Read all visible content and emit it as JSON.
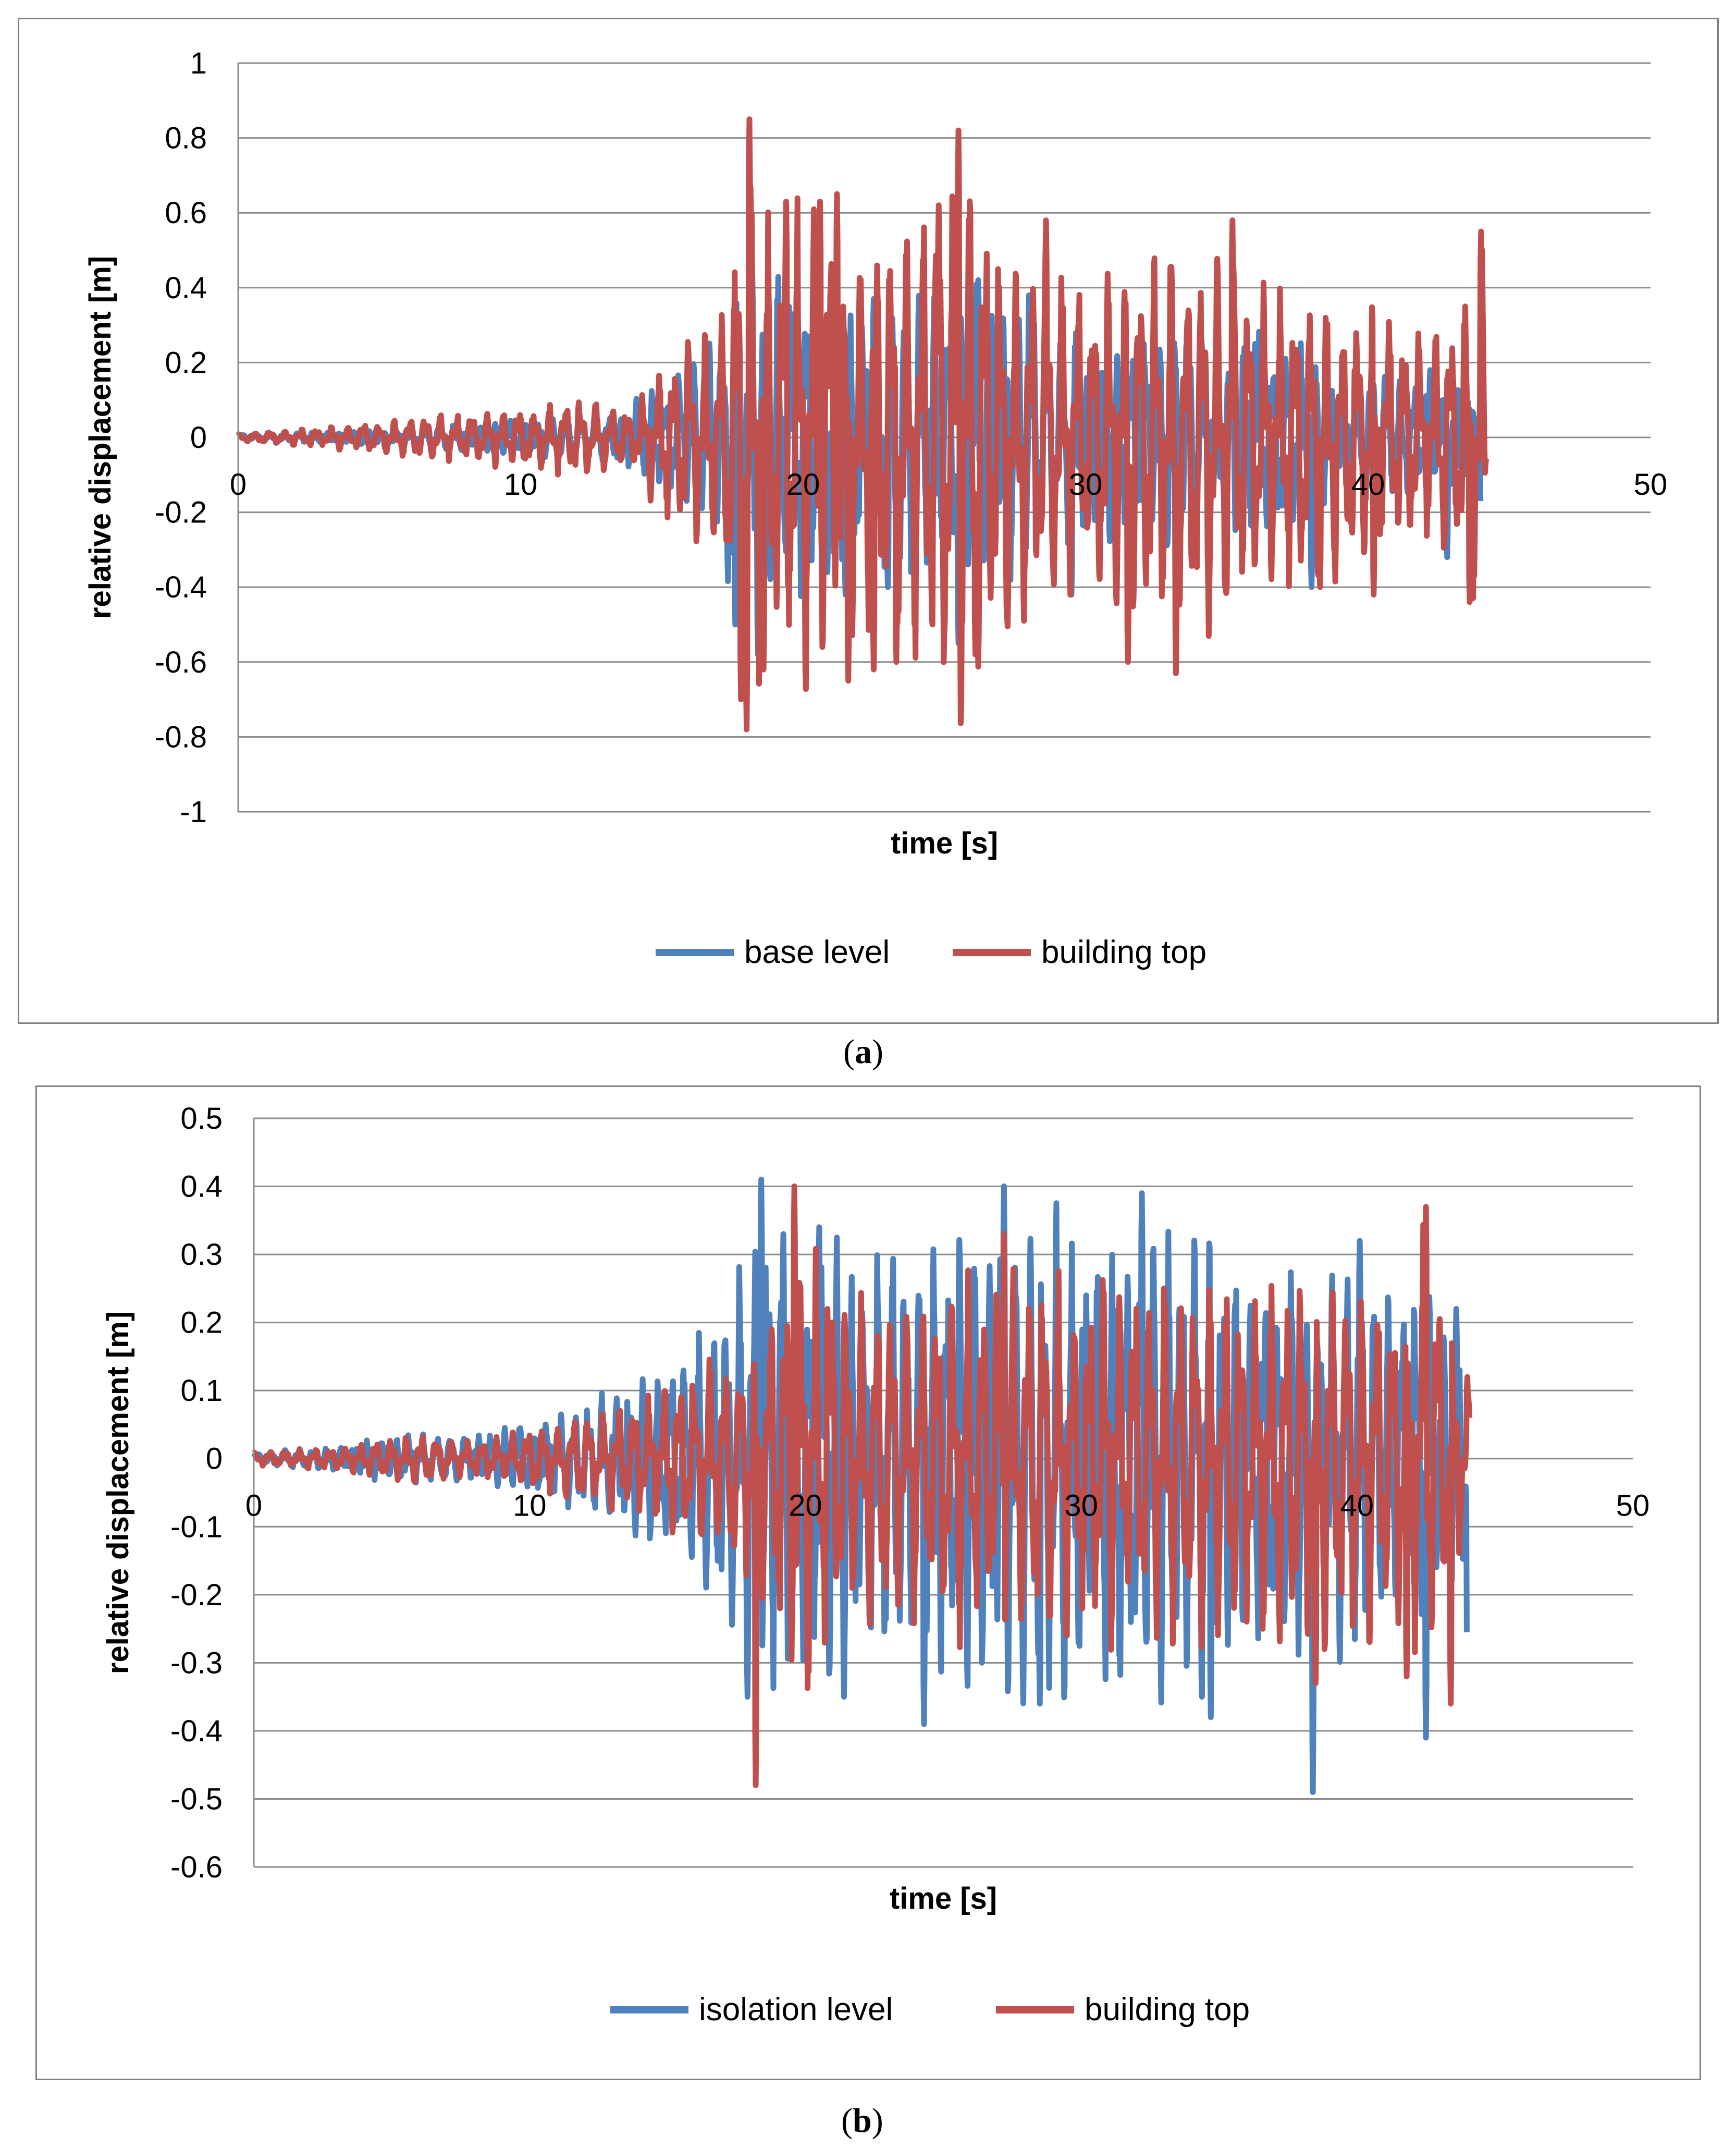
{
  "chart_data": [
    {
      "panel": "a",
      "caption": "a",
      "type": "line",
      "xlabel": "time [s]",
      "ylabel": "relative displacement  [m]",
      "xlim": [
        0,
        50
      ],
      "ylim": [
        -1,
        1
      ],
      "xticks": [
        0,
        10,
        20,
        30,
        40,
        50
      ],
      "yticks": [
        1,
        0.8,
        0.6,
        0.4,
        0.2,
        0,
        -0.2,
        -0.4,
        -0.6,
        -0.8,
        -1
      ],
      "ytick_labels": [
        "1",
        "0.8",
        "0.6",
        "0.4",
        "0.2",
        "0",
        "-0.2",
        "-0.4",
        "-0.6",
        "-0.8",
        "-1"
      ],
      "grid": true,
      "legend": "bottom",
      "series": [
        {
          "name": "base level",
          "color": "#4f81bd",
          "envelope": [
            [
              0,
              0.01
            ],
            [
              5,
              0.02
            ],
            [
              10,
              0.05
            ],
            [
              13,
              0.07
            ],
            [
              14.5,
              0.13
            ],
            [
              16,
              0.22
            ],
            [
              17.5,
              0.45
            ],
            [
              18.2,
              0.45
            ],
            [
              20,
              0.5
            ],
            [
              24,
              0.42
            ],
            [
              27,
              0.42
            ],
            [
              30,
              0.3
            ],
            [
              35,
              0.35
            ],
            [
              40,
              0.2
            ],
            [
              44,
              0.15
            ]
          ],
          "points": [
            [
              17.6,
              -0.5
            ],
            [
              18.2,
              0.45
            ],
            [
              18.4,
              -0.58
            ],
            [
              19.5,
              0.35
            ],
            [
              20.5,
              0.5
            ],
            [
              21.5,
              -0.42
            ],
            [
              22.5,
              0.37
            ],
            [
              23,
              -0.4
            ],
            [
              25.5,
              -0.55
            ],
            [
              26.2,
              0.42
            ],
            [
              28,
              0.38
            ],
            [
              29.5,
              -0.42
            ],
            [
              32,
              0.23
            ],
            [
              36,
              0.25
            ],
            [
              38,
              -0.4
            ],
            [
              42.2,
              0.18
            ],
            [
              42.8,
              -0.32
            ],
            [
              43.8,
              0.05
            ],
            [
              44,
              -0.2
            ]
          ],
          "end": 44
        },
        {
          "name": "building top",
          "color": "#c0504d",
          "envelope": [
            [
              0,
              0.01
            ],
            [
              3,
              0.03
            ],
            [
              5,
              0.05
            ],
            [
              8,
              0.07
            ],
            [
              10,
              0.09
            ],
            [
              12,
              0.12
            ],
            [
              14,
              0.08
            ],
            [
              15,
              0.24
            ],
            [
              16,
              0.3
            ],
            [
              17,
              0.35
            ],
            [
              17.5,
              0.6
            ],
            [
              18.1,
              0.85
            ],
            [
              19,
              0.6
            ],
            [
              20,
              0.7
            ],
            [
              22,
              0.55
            ],
            [
              24,
              0.65
            ],
            [
              25.5,
              0.82
            ],
            [
              27,
              0.6
            ],
            [
              30,
              0.45
            ],
            [
              32,
              0.55
            ],
            [
              35,
              0.58
            ],
            [
              36,
              0.47
            ],
            [
              38,
              0.45
            ],
            [
              40,
              0.4
            ],
            [
              42,
              0.3
            ],
            [
              43.3,
              0.4
            ],
            [
              44,
              0.55
            ]
          ],
          "points": [
            [
              17.8,
              -0.7
            ],
            [
              18.0,
              -0.78
            ],
            [
              18.1,
              0.85
            ],
            [
              18.6,
              -0.62
            ],
            [
              19.4,
              0.63
            ],
            [
              20.6,
              0.63
            ],
            [
              21.2,
              0.65
            ],
            [
              21.6,
              -0.65
            ],
            [
              22.5,
              -0.62
            ],
            [
              23.3,
              -0.6
            ],
            [
              24.8,
              0.62
            ],
            [
              25.5,
              0.82
            ],
            [
              26.1,
              -0.58
            ],
            [
              28.6,
              0.58
            ],
            [
              31.5,
              -0.6
            ],
            [
              33.2,
              -0.63
            ],
            [
              35.2,
              0.58
            ],
            [
              38.3,
              -0.4
            ],
            [
              40.2,
              -0.42
            ],
            [
              43.6,
              -0.44
            ],
            [
              44,
              0.55
            ]
          ],
          "end": 44.2
        }
      ]
    },
    {
      "panel": "b",
      "caption": "b",
      "type": "line",
      "xlabel": "time [s]",
      "ylabel": "relative displacement  [m]",
      "xlim": [
        0,
        50
      ],
      "ylim": [
        -0.6,
        0.5
      ],
      "xticks": [
        0,
        10,
        20,
        30,
        40,
        50
      ],
      "yticks": [
        0.5,
        0.4,
        0.3,
        0.2,
        0.1,
        0,
        -0.1,
        -0.2,
        -0.3,
        -0.4,
        -0.5,
        -0.6
      ],
      "ytick_labels": [
        "0.5",
        "0.4",
        "0.3",
        "0.2",
        "0.1",
        "0",
        "-0.1",
        "-0.2",
        "-0.3",
        "-0.4",
        "-0.5",
        "-0.6"
      ],
      "grid": true,
      "legend": "bottom",
      "series": [
        {
          "name": "isolation level",
          "color": "#4f81bd",
          "envelope": [
            [
              0,
              0.01
            ],
            [
              3,
              0.02
            ],
            [
              5,
              0.04
            ],
            [
              8,
              0.04
            ],
            [
              10,
              0.06
            ],
            [
              12,
              0.09
            ],
            [
              14,
              0.14
            ],
            [
              16,
              0.18
            ],
            [
              17.5,
              0.32
            ],
            [
              18.4,
              0.41
            ],
            [
              20,
              0.34
            ],
            [
              22,
              0.34
            ],
            [
              25,
              0.37
            ],
            [
              28,
              0.4
            ],
            [
              30,
              0.38
            ],
            [
              33,
              0.38
            ],
            [
              35,
              0.36
            ],
            [
              37,
              0.3
            ],
            [
              40,
              0.32
            ],
            [
              42,
              0.28
            ],
            [
              44,
              0.22
            ]
          ],
          "points": [
            [
              17.9,
              -0.35
            ],
            [
              18.4,
              0.41
            ],
            [
              19.2,
              0.33
            ],
            [
              20.5,
              0.34
            ],
            [
              21.4,
              -0.35
            ],
            [
              24.3,
              -0.39
            ],
            [
              27.2,
              0.4
            ],
            [
              28.5,
              -0.36
            ],
            [
              32.2,
              0.39
            ],
            [
              34.7,
              -0.38
            ],
            [
              38.4,
              -0.49
            ],
            [
              40.1,
              0.32
            ],
            [
              42.5,
              -0.41
            ],
            [
              43.6,
              0.22
            ],
            [
              44,
              -0.3
            ]
          ],
          "end": 44
        },
        {
          "name": "building top",
          "color": "#c0504d",
          "envelope": [
            [
              0,
              0.01
            ],
            [
              3,
              0.02
            ],
            [
              6,
              0.04
            ],
            [
              8,
              0.03
            ],
            [
              10,
              0.05
            ],
            [
              12,
              0.07
            ],
            [
              14,
              0.1
            ],
            [
              16,
              0.15
            ],
            [
              17.2,
              0.18
            ],
            [
              18,
              0.2
            ],
            [
              19,
              0.3
            ],
            [
              19.6,
              0.4
            ],
            [
              21,
              0.3
            ],
            [
              24,
              0.27
            ],
            [
              27,
              0.3
            ],
            [
              30,
              0.3
            ],
            [
              33,
              0.3
            ],
            [
              36,
              0.3
            ],
            [
              38,
              0.32
            ],
            [
              40,
              0.3
            ],
            [
              42,
              0.3
            ],
            [
              42.5,
              0.37
            ],
            [
              44,
              0.12
            ]
          ],
          "points": [
            [
              18.2,
              -0.48
            ],
            [
              19.6,
              0.4
            ],
            [
              20.8,
              0.22
            ],
            [
              27.2,
              0.33
            ],
            [
              38.5,
              -0.33
            ],
            [
              41.8,
              -0.32
            ],
            [
              42.5,
              0.37
            ],
            [
              43.4,
              -0.36
            ],
            [
              44,
              0.12
            ]
          ],
          "end": 44.1
        }
      ]
    }
  ]
}
